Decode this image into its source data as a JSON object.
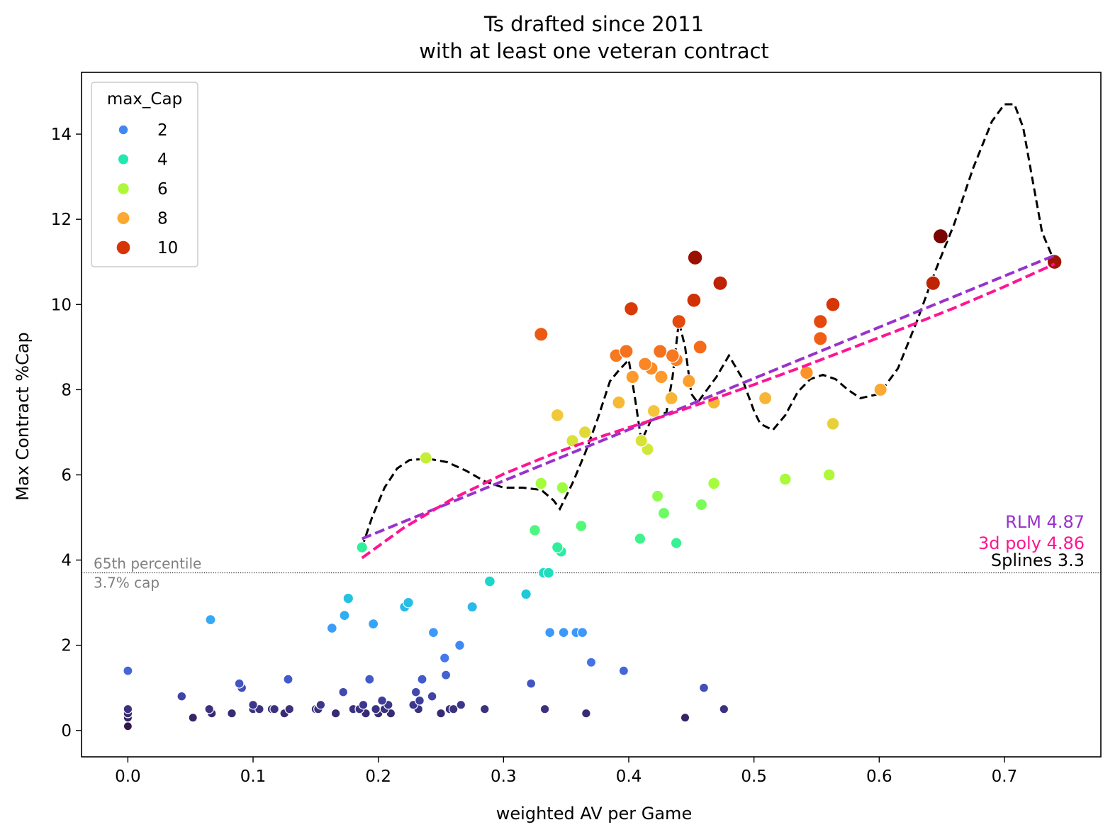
{
  "chart_data": {
    "type": "scatter",
    "title": "Ts drafted since 2011",
    "subtitle": "with at least one veteran contract",
    "xlabel": "weighted AV per Game",
    "ylabel": "Max Contract %Cap",
    "xlim": [
      -0.037,
      0.777
    ],
    "ylim": [
      -0.62,
      15.45
    ],
    "xticks": [
      0.0,
      0.1,
      0.2,
      0.3,
      0.4,
      0.5,
      0.6,
      0.7
    ],
    "xtick_labels": [
      "0.0",
      "0.1",
      "0.2",
      "0.3",
      "0.4",
      "0.5",
      "0.6",
      "0.7"
    ],
    "yticks": [
      0,
      2,
      4,
      6,
      8,
      10,
      12,
      14
    ],
    "ytick_labels": [
      "0",
      "2",
      "4",
      "6",
      "8",
      "10",
      "12",
      "14"
    ],
    "grid": false,
    "legend": {
      "title": "max_Cap",
      "placement": "top-left",
      "entries": [
        {
          "label": "2",
          "value": 2
        },
        {
          "label": "4",
          "value": 4
        },
        {
          "label": "6",
          "value": 6
        },
        {
          "label": "8",
          "value": 8
        },
        {
          "label": "10",
          "value": 10
        }
      ]
    },
    "colormap_stops": [
      "#30123b",
      "#4145ab",
      "#4675ed",
      "#39a2fc",
      "#1bcfd4",
      "#24eca6",
      "#61fc6c",
      "#a4fc3b",
      "#d1e834",
      "#f3c63a",
      "#fe9b2d",
      "#f36315",
      "#d93806",
      "#b11901",
      "#7a0402"
    ],
    "colormap_range": [
      0,
      11.6
    ],
    "reference_line": {
      "y": 3.7,
      "label_line1": "65th percentile",
      "label_line2": "3.7% cap",
      "color": "#808080"
    },
    "fits": [
      {
        "label": "RLM 4.87",
        "color": "#9932cc",
        "x": [
          0.187,
          0.74
        ],
        "y": [
          4.5,
          11.15
        ]
      },
      {
        "label": "3d poly 4.86",
        "color": "#ff1493",
        "x": [
          0.187,
          0.22,
          0.26,
          0.3,
          0.34,
          0.38,
          0.42,
          0.46,
          0.5,
          0.54,
          0.58,
          0.62,
          0.66,
          0.7,
          0.74
        ],
        "y": [
          4.05,
          4.75,
          5.45,
          6.02,
          6.5,
          6.92,
          7.3,
          7.7,
          8.12,
          8.55,
          9.0,
          9.45,
          9.92,
          10.42,
          10.95
        ]
      }
    ],
    "spline": {
      "label": "Splines 3.3",
      "color": "#000000",
      "x": [
        0.187,
        0.195,
        0.205,
        0.215,
        0.225,
        0.24,
        0.255,
        0.27,
        0.285,
        0.3,
        0.315,
        0.33,
        0.34,
        0.345,
        0.355,
        0.365,
        0.375,
        0.385,
        0.392,
        0.4,
        0.405,
        0.41,
        0.415,
        0.42,
        0.43,
        0.435,
        0.44,
        0.445,
        0.45,
        0.455,
        0.46,
        0.47,
        0.48,
        0.49,
        0.5,
        0.505,
        0.515,
        0.525,
        0.535,
        0.545,
        0.555,
        0.565,
        0.575,
        0.585,
        0.6,
        0.615,
        0.63,
        0.645,
        0.66,
        0.675,
        0.69,
        0.7,
        0.708,
        0.715,
        0.722,
        0.73,
        0.74
      ],
      "y": [
        4.3,
        5.0,
        5.7,
        6.15,
        6.35,
        6.38,
        6.3,
        6.1,
        5.85,
        5.7,
        5.7,
        5.65,
        5.4,
        5.2,
        5.8,
        6.5,
        7.3,
        8.2,
        8.45,
        8.7,
        7.8,
        6.8,
        7.1,
        7.45,
        7.45,
        8.3,
        9.6,
        9.0,
        7.9,
        7.7,
        7.9,
        8.3,
        8.8,
        8.3,
        7.5,
        7.2,
        7.05,
        7.4,
        7.95,
        8.25,
        8.35,
        8.25,
        8.0,
        7.8,
        7.9,
        8.5,
        9.6,
        10.8,
        11.9,
        13.2,
        14.3,
        14.7,
        14.7,
        14.15,
        13.0,
        11.7,
        11.0
      ]
    },
    "x": [
      0.0,
      0.0,
      0.0,
      0.0,
      0.0,
      0.0,
      0.043,
      0.052,
      0.065,
      0.067,
      0.067,
      0.083,
      0.089,
      0.091,
      0.1,
      0.1,
      0.105,
      0.115,
      0.117,
      0.125,
      0.128,
      0.129,
      0.15,
      0.152,
      0.154,
      0.166,
      0.172,
      0.18,
      0.185,
      0.188,
      0.19,
      0.193,
      0.198,
      0.2,
      0.203,
      0.205,
      0.208,
      0.21,
      0.228,
      0.23,
      0.232,
      0.233,
      0.235,
      0.243,
      0.25,
      0.257,
      0.26,
      0.266,
      0.285,
      0.322,
      0.333,
      0.366,
      0.37,
      0.396,
      0.445,
      0.46,
      0.476,
      0.066,
      0.163,
      0.173,
      0.176,
      0.196,
      0.221,
      0.224,
      0.244,
      0.253,
      0.254,
      0.265,
      0.275,
      0.289,
      0.318,
      0.337,
      0.348,
      0.358,
      0.363,
      0.332,
      0.336,
      0.187,
      0.325,
      0.343,
      0.346,
      0.362,
      0.409,
      0.438,
      0.238,
      0.33,
      0.347,
      0.41,
      0.415,
      0.423,
      0.428,
      0.458,
      0.468,
      0.525,
      0.56,
      0.355,
      0.365,
      0.563,
      0.343,
      0.392,
      0.42,
      0.434,
      0.448,
      0.468,
      0.509,
      0.601,
      0.542,
      0.39,
      0.398,
      0.403,
      0.413,
      0.418,
      0.425,
      0.426,
      0.435,
      0.438,
      0.457,
      0.553,
      0.33,
      0.402,
      0.44,
      0.452,
      0.473,
      0.553,
      0.563,
      0.643,
      0.453,
      0.649,
      0.74
    ],
    "y": [
      0.1,
      0.3,
      0.4,
      0.4,
      0.5,
      1.4,
      0.8,
      0.3,
      0.5,
      0.4,
      0.4,
      0.4,
      1.1,
      1.0,
      0.5,
      0.6,
      0.5,
      0.5,
      0.5,
      0.4,
      1.2,
      0.5,
      0.5,
      0.5,
      0.6,
      0.4,
      0.9,
      0.5,
      0.5,
      0.6,
      0.4,
      1.2,
      0.5,
      0.4,
      0.7,
      0.5,
      0.6,
      0.4,
      0.6,
      0.9,
      0.5,
      0.7,
      1.2,
      0.8,
      0.4,
      0.5,
      0.5,
      0.6,
      0.5,
      1.1,
      0.5,
      0.4,
      1.6,
      1.4,
      0.3,
      1.0,
      0.5,
      2.6,
      2.4,
      2.7,
      3.1,
      2.5,
      2.9,
      3.0,
      2.3,
      1.7,
      1.3,
      2.0,
      2.9,
      3.5,
      3.2,
      2.3,
      2.3,
      2.3,
      2.3,
      3.7,
      3.7,
      4.3,
      4.7,
      4.3,
      4.2,
      4.8,
      4.5,
      4.4,
      6.4,
      5.8,
      5.7,
      6.8,
      6.6,
      5.5,
      5.1,
      5.3,
      5.8,
      5.9,
      6.0,
      6.8,
      7.0,
      7.2,
      7.4,
      7.7,
      7.5,
      7.8,
      8.2,
      7.7,
      7.8,
      8.0,
      8.4,
      8.8,
      8.9,
      8.3,
      8.6,
      8.5,
      8.9,
      8.3,
      8.8,
      8.7,
      9.0,
      9.2,
      9.3,
      9.9,
      9.6,
      10.1,
      10.5,
      9.6,
      10.0,
      10.5,
      11.1,
      11.6,
      11.0
    ]
  }
}
